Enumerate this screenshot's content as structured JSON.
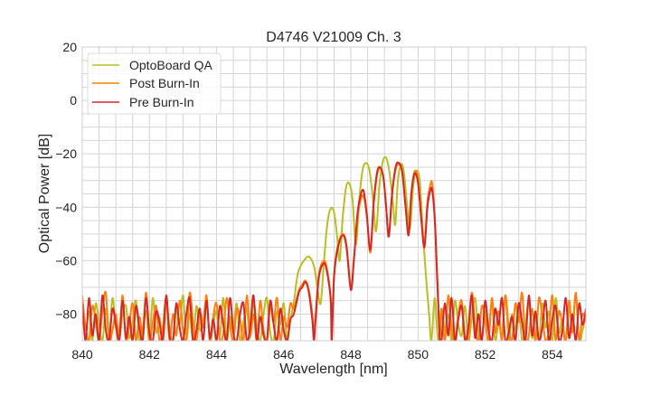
{
  "chart_data": {
    "type": "line",
    "title": "D4746 V21009 Ch. 3",
    "xlabel": "Wavelength [nm]",
    "ylabel": "Optical Power [dB]",
    "xlim": [
      840,
      855
    ],
    "ylim": [
      -90,
      20
    ],
    "xticks": [
      840,
      842,
      844,
      846,
      848,
      850,
      852,
      854
    ],
    "yticks": [
      20,
      0,
      -20,
      -40,
      -60,
      -80
    ],
    "xtick_labels": [
      "840",
      "842",
      "844",
      "846",
      "848",
      "850",
      "852",
      "854"
    ],
    "ytick_labels": [
      "20",
      "0",
      "−20",
      "−40",
      "−60",
      "−80"
    ],
    "grid": true,
    "minor_grid": {
      "x_step": 0.5,
      "y_step": 5
    },
    "legend_position": "top-left",
    "series": [
      {
        "name": "OptoBoard QA",
        "color": "#bcbd22",
        "noise_left": {
          "x_from": 840.0,
          "x_step": 0.1,
          "values": [
            -73,
            -86,
            -79,
            -90,
            -76,
            -84,
            -90,
            -78,
            -88,
            -74,
            -85,
            -90,
            -80,
            -77,
            -89,
            -83,
            -75,
            -90,
            -86,
            -79,
            -90,
            -74,
            -87,
            -81,
            -90,
            -76,
            -85,
            -90,
            -78,
            -84,
            -73,
            -89,
            -80,
            -90,
            -77,
            -86,
            -82,
            -75,
            -90,
            -84,
            -79,
            -88,
            -74,
            -90,
            -81,
            -86,
            -76,
            -90,
            -83,
            -78,
            -89,
            -75,
            -85,
            -90,
            -80,
            -74,
            -87,
            -90,
            -79,
            -84,
            -76,
            -90,
            -82
          ]
        },
        "lobes": [
          [
            846.3,
            -76
          ],
          [
            846.4,
            -66
          ],
          [
            846.5,
            -62
          ],
          [
            846.6,
            -60
          ],
          [
            846.75,
            -58.5
          ],
          [
            846.9,
            -62
          ],
          [
            847.0,
            -70
          ],
          [
            847.1,
            -76
          ],
          [
            847.2,
            -60
          ],
          [
            847.3,
            -46
          ],
          [
            847.4,
            -40.5
          ],
          [
            847.5,
            -42
          ],
          [
            847.6,
            -52
          ],
          [
            847.67,
            -60
          ],
          [
            847.75,
            -45
          ],
          [
            847.85,
            -33
          ],
          [
            847.95,
            -31
          ],
          [
            848.05,
            -37
          ],
          [
            848.15,
            -54
          ],
          [
            848.25,
            -37
          ],
          [
            848.35,
            -26
          ],
          [
            848.45,
            -23.5
          ],
          [
            848.55,
            -26
          ],
          [
            848.65,
            -36
          ],
          [
            848.75,
            -49
          ],
          [
            848.85,
            -32
          ],
          [
            848.95,
            -23
          ],
          [
            849.05,
            -21.5
          ],
          [
            849.15,
            -27
          ],
          [
            849.25,
            -38
          ],
          [
            849.32,
            -46.5
          ],
          [
            849.4,
            -30
          ],
          [
            849.5,
            -24
          ],
          [
            849.58,
            -27
          ],
          [
            849.68,
            -40
          ],
          [
            849.76,
            -48
          ],
          [
            849.85,
            -33
          ],
          [
            849.95,
            -26.5
          ],
          [
            850.05,
            -30
          ],
          [
            850.15,
            -50
          ],
          [
            850.25,
            -68
          ],
          [
            850.33,
            -80
          ]
        ],
        "noise_right": {
          "x_from": 850.4,
          "x_step": 0.1,
          "values": [
            -90,
            -74,
            -90,
            -78,
            -86,
            -80,
            -90,
            -75,
            -84,
            -88,
            -77,
            -90,
            -82,
            -74,
            -87,
            -90,
            -79,
            -85,
            -76,
            -90,
            -83,
            -88,
            -73,
            -90,
            -80,
            -86,
            -77,
            -90,
            -84,
            -75,
            -89,
            -81,
            -90,
            -76,
            -85,
            -79,
            -90,
            -74,
            -87,
            -82,
            -90,
            -78,
            -84,
            -73,
            -90,
            -86,
            -80
          ]
        }
      },
      {
        "name": "Post Burn-In",
        "color": "#ff7f0e",
        "noise_left": {
          "x_from": 840.0,
          "x_step": 0.1,
          "values": [
            -74,
            -85,
            -90,
            -77,
            -83,
            -90,
            -79,
            -72,
            -90,
            -86,
            -80,
            -88,
            -73,
            -90,
            -84,
            -76,
            -90,
            -81,
            -87,
            -72,
            -90,
            -83,
            -77,
            -90,
            -85,
            -74,
            -90,
            -80,
            -88,
            -75,
            -86,
            -90,
            -72,
            -83,
            -90,
            -79,
            -85,
            -73,
            -90,
            -81,
            -76,
            -90,
            -87,
            -74,
            -84,
            -90,
            -78,
            -82,
            -90,
            -73,
            -88,
            -80,
            -90,
            -75,
            -86,
            -90,
            -77,
            -83,
            -74,
            -90,
            -81,
            -85,
            -76
          ]
        },
        "lobes": [
          [
            846.3,
            -78
          ],
          [
            846.45,
            -71
          ],
          [
            846.55,
            -69
          ],
          [
            846.65,
            -67.5
          ],
          [
            846.75,
            -71
          ],
          [
            846.85,
            -80
          ],
          [
            846.9,
            -88
          ],
          [
            846.95,
            -80
          ],
          [
            847.05,
            -65
          ],
          [
            847.2,
            -60
          ],
          [
            847.3,
            -64
          ],
          [
            847.4,
            -74
          ],
          [
            847.43,
            -88
          ],
          [
            847.5,
            -65
          ],
          [
            847.6,
            -55
          ],
          [
            847.75,
            -50
          ],
          [
            847.87,
            -54
          ],
          [
            848.0,
            -70
          ],
          [
            848.1,
            -58
          ],
          [
            848.2,
            -44
          ],
          [
            848.3,
            -37
          ],
          [
            848.38,
            -36
          ],
          [
            848.47,
            -43
          ],
          [
            848.58,
            -57
          ],
          [
            848.68,
            -39
          ],
          [
            848.78,
            -28
          ],
          [
            848.87,
            -25.5
          ],
          [
            848.97,
            -29
          ],
          [
            849.05,
            -40
          ],
          [
            849.13,
            -51
          ],
          [
            849.22,
            -36
          ],
          [
            849.33,
            -26
          ],
          [
            849.43,
            -24
          ],
          [
            849.53,
            -27
          ],
          [
            849.63,
            -40
          ],
          [
            849.72,
            -50
          ],
          [
            849.8,
            -35
          ],
          [
            849.9,
            -26.5
          ],
          [
            850.0,
            -30
          ],
          [
            850.1,
            -44
          ],
          [
            850.19,
            -54
          ],
          [
            850.28,
            -38
          ],
          [
            850.36,
            -32
          ],
          [
            850.42,
            -31
          ],
          [
            850.5,
            -44
          ],
          [
            850.58,
            -68
          ],
          [
            850.65,
            -88
          ]
        ],
        "noise_right": {
          "x_from": 850.7,
          "x_step": 0.1,
          "values": [
            -78,
            -90,
            -73,
            -86,
            -90,
            -80,
            -75,
            -88,
            -90,
            -72,
            -84,
            -90,
            -77,
            -82,
            -90,
            -74,
            -87,
            -79,
            -90,
            -73,
            -85,
            -90,
            -76,
            -83,
            -72,
            -90,
            -88,
            -78,
            -90,
            -74,
            -81,
            -90,
            -86,
            -73,
            -90,
            -79,
            -84,
            -90,
            -75,
            -87,
            -72,
            -90,
            -80,
            -83
          ]
        }
      },
      {
        "name": "Pre Burn-In",
        "color": "#d62728",
        "noise_left": {
          "x_from": 840.0,
          "x_step": 0.1,
          "values": [
            -76,
            -90,
            -74,
            -88,
            -80,
            -90,
            -73,
            -86,
            -90,
            -78,
            -84,
            -90,
            -75,
            -89,
            -81,
            -90,
            -77,
            -85,
            -90,
            -74,
            -87,
            -90,
            -79,
            -83,
            -90,
            -73,
            -88,
            -90,
            -76,
            -85,
            -90,
            -80,
            -74,
            -90,
            -86,
            -78,
            -90,
            -75,
            -89,
            -82,
            -90,
            -77,
            -84,
            -90,
            -74,
            -87,
            -90,
            -80,
            -76,
            -90,
            -85,
            -73,
            -90,
            -81,
            -88,
            -90,
            -75,
            -84,
            -90,
            -78,
            -86,
            -90,
            -82
          ]
        },
        "lobes": [
          [
            846.3,
            -80
          ],
          [
            846.45,
            -72
          ],
          [
            846.55,
            -70
          ],
          [
            846.65,
            -68
          ],
          [
            846.75,
            -72
          ],
          [
            846.85,
            -82
          ],
          [
            846.9,
            -90
          ],
          [
            846.95,
            -82
          ],
          [
            847.05,
            -66
          ],
          [
            847.2,
            -61
          ],
          [
            847.3,
            -65
          ],
          [
            847.4,
            -75
          ],
          [
            847.43,
            -90
          ],
          [
            847.5,
            -66
          ],
          [
            847.6,
            -56
          ],
          [
            847.75,
            -50.5
          ],
          [
            847.87,
            -55
          ],
          [
            848.0,
            -71
          ],
          [
            848.1,
            -58
          ],
          [
            848.2,
            -42
          ],
          [
            848.3,
            -35
          ],
          [
            848.38,
            -34
          ],
          [
            848.47,
            -42
          ],
          [
            848.58,
            -56
          ],
          [
            848.68,
            -38
          ],
          [
            848.78,
            -27
          ],
          [
            848.87,
            -25
          ],
          [
            848.97,
            -29
          ],
          [
            849.05,
            -40
          ],
          [
            849.13,
            -51
          ],
          [
            849.22,
            -36
          ],
          [
            849.33,
            -25
          ],
          [
            849.43,
            -23.4
          ],
          [
            849.53,
            -27
          ],
          [
            849.63,
            -40
          ],
          [
            849.72,
            -50.5
          ],
          [
            849.8,
            -35
          ],
          [
            849.9,
            -27.4
          ],
          [
            850.0,
            -31
          ],
          [
            850.1,
            -45
          ],
          [
            850.19,
            -55
          ],
          [
            850.28,
            -40
          ],
          [
            850.36,
            -34
          ],
          [
            850.42,
            -33.6
          ],
          [
            850.5,
            -45
          ],
          [
            850.58,
            -70
          ],
          [
            850.65,
            -90
          ]
        ],
        "noise_right": {
          "x_from": 850.7,
          "x_step": 0.1,
          "values": [
            -90,
            -76,
            -88,
            -74,
            -90,
            -82,
            -77,
            -90,
            -85,
            -73,
            -89,
            -80,
            -90,
            -75,
            -86,
            -90,
            -78,
            -84,
            -74,
            -90,
            -87,
            -81,
            -90,
            -76,
            -83,
            -90,
            -73,
            -88,
            -79,
            -90,
            -85,
            -75,
            -90,
            -82,
            -77,
            -90,
            -86,
            -74,
            -89,
            -80,
            -90,
            -76,
            -84,
            -78
          ]
        }
      }
    ]
  }
}
